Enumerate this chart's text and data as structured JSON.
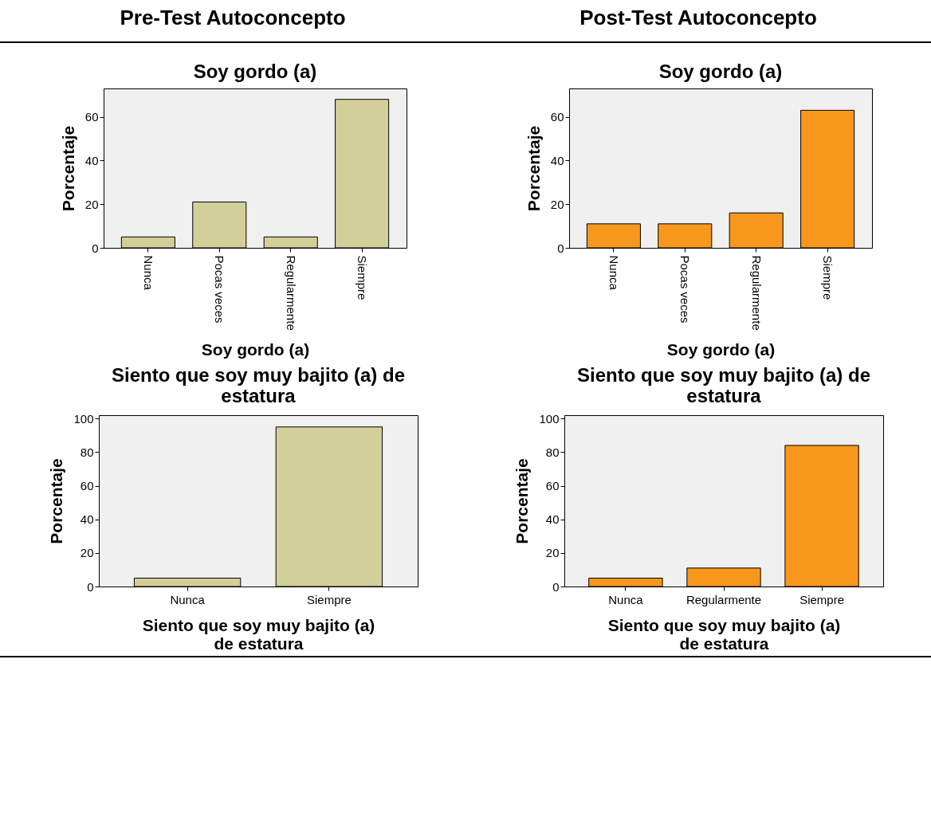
{
  "chart_data": [
    {
      "type": "bar",
      "title": "Soy gordo (a)",
      "xlabel": "Soy gordo (a)",
      "ylabel": "Porcentaje",
      "annotations": [
        "Pre-Test Autoconcepto"
      ],
      "categories": [
        "Nunca",
        "Pocas veces",
        "Regularmente",
        "Siempre"
      ],
      "values": [
        5,
        21,
        5,
        68
      ],
      "color": "#d3cf98",
      "ylim": [
        0,
        73
      ],
      "yticks": [
        0,
        20,
        40,
        60
      ]
    },
    {
      "type": "bar",
      "title": "Soy gordo (a)",
      "xlabel": "Soy gordo (a)",
      "ylabel": "Porcentaje",
      "annotations": [
        "Post-Test Autoconcepto"
      ],
      "categories": [
        "Nunca",
        "Pocas veces",
        "Regularmente",
        "Siempre"
      ],
      "values": [
        11,
        11,
        16,
        63
      ],
      "color": "#f7981d",
      "ylim": [
        0,
        73
      ],
      "yticks": [
        0,
        20,
        40,
        60
      ]
    },
    {
      "type": "bar",
      "title": "Siento que soy muy bajito (a) de estatura",
      "xlabel": "Siento que soy muy bajito (a) de estatura",
      "ylabel": "Porcentaje",
      "categories": [
        "Nunca",
        "Siempre"
      ],
      "values": [
        5,
        95
      ],
      "color": "#d3cf98",
      "ylim": [
        0,
        102
      ],
      "yticks": [
        0,
        20,
        40,
        60,
        80,
        100
      ]
    },
    {
      "type": "bar",
      "title": "Siento que soy muy bajito (a) de estatura",
      "xlabel": "Siento que soy muy bajito (a) de estatura",
      "ylabel": "Porcentaje",
      "categories": [
        "Nunca",
        "Regularmente",
        "Siempre"
      ],
      "values": [
        5,
        11,
        84
      ],
      "color": "#f7981d",
      "ylim": [
        0,
        102
      ],
      "yticks": [
        0,
        20,
        40,
        60,
        80,
        100
      ]
    }
  ]
}
